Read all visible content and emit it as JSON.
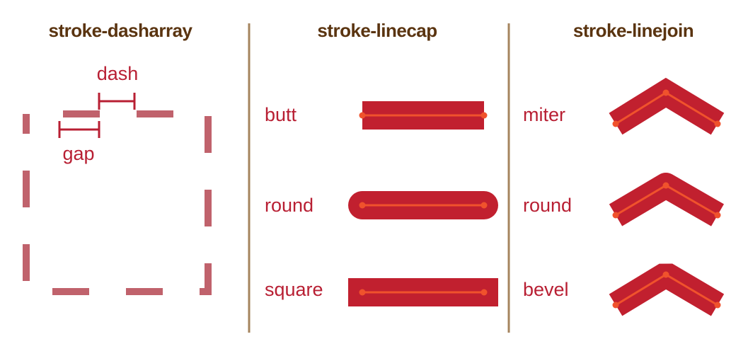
{
  "colors": {
    "title": "#5a3410",
    "divider": "#a5845e",
    "label": "#b81f33",
    "stroke_main": "#c1202f",
    "dash": "#c0626c",
    "centerline": "#f0522c",
    "dimension": "#b81f33"
  },
  "sections": {
    "dasharray": {
      "title": "stroke-dasharray",
      "dash_label": "dash",
      "gap_label": "gap"
    },
    "linecap": {
      "title": "stroke-linecap",
      "items": [
        {
          "label": "butt",
          "cap": "butt"
        },
        {
          "label": "round",
          "cap": "round"
        },
        {
          "label": "square",
          "cap": "square"
        }
      ]
    },
    "linejoin": {
      "title": "stroke-linejoin",
      "items": [
        {
          "label": "miter",
          "join": "miter"
        },
        {
          "label": "round",
          "join": "round"
        },
        {
          "label": "bevel",
          "join": "bevel"
        }
      ]
    }
  }
}
